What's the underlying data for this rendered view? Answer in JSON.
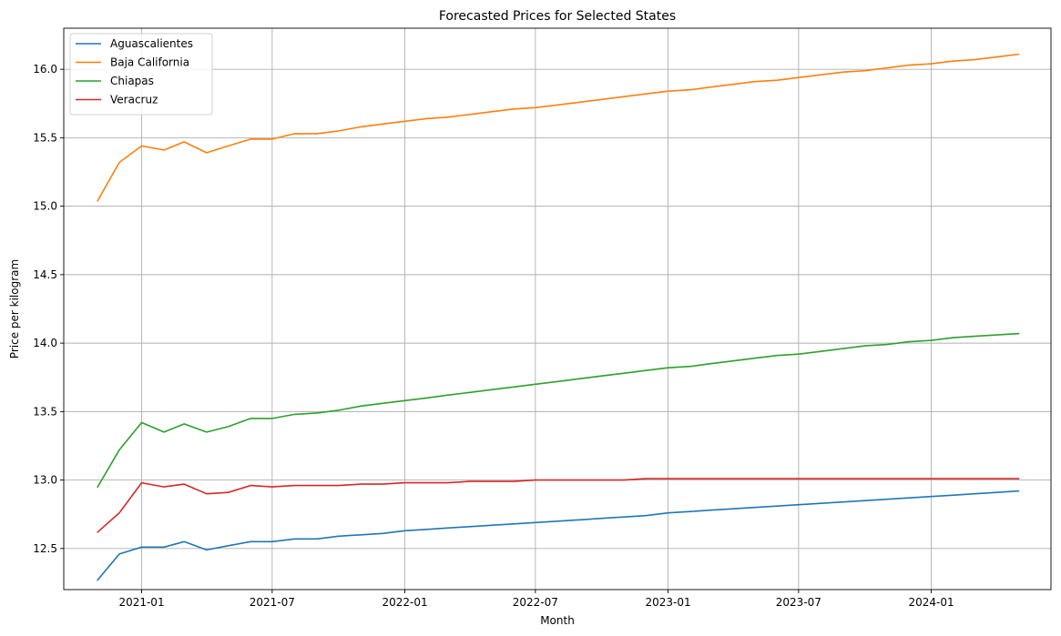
{
  "chart_data": {
    "type": "line",
    "title": "Forecasted Prices for Selected States",
    "xlabel": "Month",
    "ylabel": "Price per kilogram",
    "x": [
      "2020-11",
      "2020-12",
      "2021-01",
      "2021-02",
      "2021-03",
      "2021-04",
      "2021-05",
      "2021-06",
      "2021-07",
      "2021-08",
      "2021-09",
      "2021-10",
      "2021-11",
      "2021-12",
      "2022-01",
      "2022-02",
      "2022-03",
      "2022-04",
      "2022-05",
      "2022-06",
      "2022-07",
      "2022-08",
      "2022-09",
      "2022-10",
      "2022-11",
      "2022-12",
      "2023-01",
      "2023-02",
      "2023-03",
      "2023-04",
      "2023-05",
      "2023-06",
      "2023-07",
      "2023-08",
      "2023-09",
      "2023-10",
      "2023-11",
      "2023-12",
      "2024-01",
      "2024-02",
      "2024-03",
      "2024-04",
      "2024-05"
    ],
    "xlim": [
      "2020-09-15",
      "2024-06-15"
    ],
    "ylim": [
      12.2,
      16.3
    ],
    "x_ticks": [
      "2021-01",
      "2021-07",
      "2022-01",
      "2022-07",
      "2023-01",
      "2023-07",
      "2024-01"
    ],
    "y_ticks": [
      12.5,
      13.0,
      13.5,
      14.0,
      14.5,
      15.0,
      15.5,
      16.0
    ],
    "grid": true,
    "legend_position": "top-left",
    "series": [
      {
        "name": "Aguascalientes",
        "color": "#1f77b4",
        "values": [
          12.27,
          12.46,
          12.51,
          12.51,
          12.55,
          12.49,
          12.52,
          12.55,
          12.55,
          12.57,
          12.57,
          12.59,
          12.6,
          12.61,
          12.63,
          12.64,
          12.65,
          12.66,
          12.67,
          12.68,
          12.69,
          12.7,
          12.71,
          12.72,
          12.73,
          12.74,
          12.76,
          12.77,
          12.78,
          12.79,
          12.8,
          12.81,
          12.82,
          12.83,
          12.84,
          12.85,
          12.86,
          12.87,
          12.88,
          12.89,
          12.9,
          12.91,
          12.92
        ]
      },
      {
        "name": "Baja California",
        "color": "#ff7f0e",
        "values": [
          15.04,
          15.32,
          15.44,
          15.41,
          15.47,
          15.39,
          15.44,
          15.49,
          15.49,
          15.53,
          15.53,
          15.55,
          15.58,
          15.6,
          15.62,
          15.64,
          15.65,
          15.67,
          15.69,
          15.71,
          15.72,
          15.74,
          15.76,
          15.78,
          15.8,
          15.82,
          15.84,
          15.85,
          15.87,
          15.89,
          15.91,
          15.92,
          15.94,
          15.96,
          15.98,
          15.99,
          16.01,
          16.03,
          16.04,
          16.06,
          16.07,
          16.09,
          16.11
        ]
      },
      {
        "name": "Chiapas",
        "color": "#2ca02c",
        "values": [
          12.95,
          13.22,
          13.42,
          13.35,
          13.41,
          13.35,
          13.39,
          13.45,
          13.45,
          13.48,
          13.49,
          13.51,
          13.54,
          13.56,
          13.58,
          13.6,
          13.62,
          13.64,
          13.66,
          13.68,
          13.7,
          13.72,
          13.74,
          13.76,
          13.78,
          13.8,
          13.82,
          13.83,
          13.85,
          13.87,
          13.89,
          13.91,
          13.92,
          13.94,
          13.96,
          13.98,
          13.99,
          14.01,
          14.02,
          14.04,
          14.05,
          14.06,
          14.07
        ]
      },
      {
        "name": "Veracruz",
        "color": "#d62728",
        "values": [
          12.62,
          12.76,
          12.98,
          12.95,
          12.97,
          12.9,
          12.91,
          12.96,
          12.95,
          12.96,
          12.96,
          12.96,
          12.97,
          12.97,
          12.98,
          12.98,
          12.98,
          12.99,
          12.99,
          12.99,
          13.0,
          13.0,
          13.0,
          13.0,
          13.0,
          13.01,
          13.01,
          13.01,
          13.01,
          13.01,
          13.01,
          13.01,
          13.01,
          13.01,
          13.01,
          13.01,
          13.01,
          13.01,
          13.01,
          13.01,
          13.01,
          13.01,
          13.01
        ]
      }
    ]
  }
}
